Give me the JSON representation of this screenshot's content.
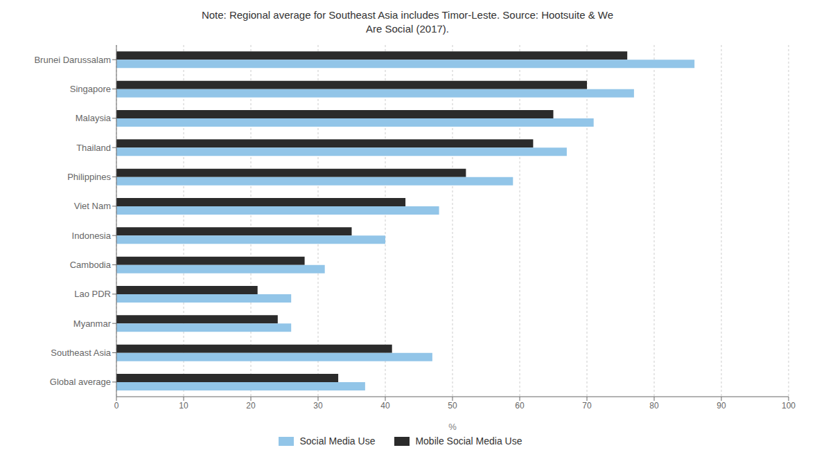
{
  "chart_data": {
    "type": "bar",
    "orientation": "horizontal",
    "title": "Note: Regional average for Southeast Asia includes Timor-Leste. Source: Hootsuite & We\nAre Social (2017).",
    "categories": [
      "Brunei Darussalam",
      "Singapore",
      "Malaysia",
      "Thailand",
      "Philippines",
      "Viet Nam",
      "Indonesia",
      "Cambodia",
      "Lao PDR",
      "Myanmar",
      "Southeast Asia",
      "Global average"
    ],
    "series": [
      {
        "name": "Social Media Use",
        "color": "#92C5E8",
        "values": [
          86,
          77,
          71,
          67,
          59,
          48,
          40,
          31,
          26,
          26,
          47,
          37
        ]
      },
      {
        "name": "Mobile Social Media Use",
        "color": "#2B2B2B",
        "values": [
          76,
          70,
          65,
          62,
          52,
          43,
          35,
          28,
          21,
          24,
          41,
          33
        ]
      }
    ],
    "xlabel": "%",
    "xlim": [
      0,
      100
    ],
    "xticks": [
      0,
      10,
      20,
      30,
      40,
      50,
      60,
      70,
      80,
      90,
      100
    ],
    "grid": true,
    "legend": "bottom"
  }
}
